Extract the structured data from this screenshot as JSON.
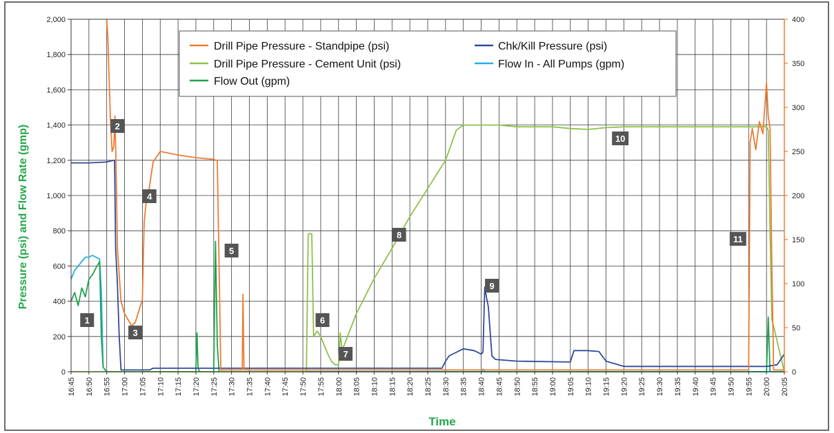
{
  "chart_data": {
    "type": "line",
    "xlabel": "Time",
    "ylabel": "Pressure (psi) and Flow Rate (gmp)",
    "ylim": [
      0,
      2000
    ],
    "y2lim": [
      0,
      400
    ],
    "y_ticks": [
      "0",
      "200",
      "400",
      "600",
      "800",
      "1,000",
      "1,200",
      "1,400",
      "1,600",
      "1,800",
      "2,000"
    ],
    "y2_ticks": [
      "0",
      "50",
      "100",
      "150",
      "200",
      "250",
      "300",
      "350",
      "400"
    ],
    "x_ticks": [
      "16:45",
      "16:50",
      "16:55",
      "17:00",
      "17:05",
      "17:10",
      "17:15",
      "17:20",
      "17:25",
      "17:30",
      "17:35",
      "17:40",
      "17:45",
      "17:50",
      "17:55",
      "18:00",
      "18:05",
      "18:10",
      "18:15",
      "18:20",
      "18:25",
      "18:30",
      "18:35",
      "18:40",
      "18:45",
      "18:50",
      "18:55",
      "19:00",
      "19:05",
      "19:10",
      "19:15",
      "19:20",
      "19:25",
      "19:30",
      "19:35",
      "19:40",
      "19:45",
      "19:50",
      "19:55",
      "20:00",
      "20:05"
    ],
    "grid": true,
    "legend_position": "top-center",
    "series": [
      {
        "name": "Drill Pipe Pressure - Standpipe (psi)",
        "color": "#ee7b30",
        "x": [
          "16:55",
          "16:55.3",
          "16:56",
          "16:56.5",
          "16:57",
          "16:57.3",
          "16:57.6",
          "16:58",
          "16:59",
          "17:00",
          "17:02",
          "17:03",
          "17:05",
          "17:05.5",
          "17:06",
          "17:07",
          "17:08",
          "17:10",
          "17:15",
          "17:20",
          "17:25",
          "17:25.5",
          "17:26",
          "17:26.5",
          "17:27",
          "17:30",
          "17:33",
          "17:33.2",
          "17:33.5",
          "17:34",
          "17:40",
          "19:50",
          "19:55",
          "19:55.4",
          "19:56",
          "19:57",
          "19:58",
          "19:59",
          "19:59.5",
          "20:00",
          "20:00.5",
          "20:01",
          "20:01.5",
          "20:02",
          "20:03",
          "20:05"
        ],
        "y": [
          2000,
          1900,
          1450,
          1250,
          1280,
          1450,
          1200,
          700,
          400,
          330,
          260,
          280,
          410,
          850,
          950,
          1050,
          1190,
          1250,
          1230,
          1215,
          1205,
          1200,
          1200,
          600,
          10,
          10,
          10,
          440,
          10,
          10,
          10,
          10,
          10,
          1300,
          1380,
          1260,
          1420,
          1350,
          1500,
          1640,
          1450,
          1380,
          600,
          10,
          10,
          10
        ]
      },
      {
        "name": "Chk/Kill Pressure (psi)",
        "color": "#2e4a9a",
        "x": [
          "16:45",
          "16:50",
          "16:55",
          "16:57",
          "16:57.2",
          "16:57.5",
          "16:58",
          "16:58.5",
          "16:59",
          "17:00",
          "17:07",
          "17:08",
          "17:25",
          "17:30",
          "18:29",
          "18:30",
          "18:31",
          "18:35",
          "18:38",
          "18:39",
          "18:40",
          "18:40.5",
          "18:41",
          "18:41.5",
          "18:42",
          "18:43",
          "18:44",
          "18:50",
          "19:05",
          "19:06",
          "19:10",
          "19:13",
          "19:15",
          "19:20",
          "20:00",
          "20:03",
          "20:05"
        ],
        "y": [
          1185,
          1185,
          1190,
          1200,
          1200,
          700,
          500,
          200,
          10,
          10,
          10,
          20,
          20,
          20,
          20,
          60,
          90,
          130,
          120,
          110,
          100,
          110,
          480,
          420,
          370,
          90,
          70,
          60,
          55,
          120,
          120,
          115,
          60,
          30,
          30,
          40,
          100
        ]
      },
      {
        "name": "Drill Pipe Pressure - Cement Unit (psi)",
        "color": "#8dc14a",
        "x": [
          "16:45",
          "17:50",
          "17:51",
          "17:51.5",
          "17:52",
          "17:52.5",
          "17:53",
          "17:54",
          "17:55",
          "17:56",
          "17:57",
          "17:58",
          "17:59",
          "18:00",
          "18:00.5",
          "18:01",
          "18:05",
          "18:10",
          "18:15",
          "18:20",
          "18:25",
          "18:30",
          "18:33",
          "18:35",
          "18:45",
          "18:50",
          "18:55",
          "19:00",
          "19:05",
          "19:10",
          "19:15",
          "19:20",
          "19:25",
          "19:30",
          "19:35",
          "19:40",
          "19:45",
          "19:50",
          "19:55",
          "20:00",
          "20:00.5",
          "20:01",
          "20:01.5",
          "20:05"
        ],
        "y": [
          0,
          0,
          0,
          780,
          785,
          780,
          200,
          230,
          200,
          150,
          100,
          60,
          40,
          40,
          220,
          120,
          330,
          530,
          700,
          880,
          1040,
          1200,
          1370,
          1400,
          1400,
          1390,
          1390,
          1390,
          1380,
          1375,
          1385,
          1390,
          1390,
          1390,
          1390,
          1390,
          1390,
          1390,
          1390,
          1390,
          1370,
          800,
          300,
          0
        ]
      },
      {
        "name": "Flow In - All Pumps (gpm)",
        "color": "#22aee6",
        "x": [
          "16:45",
          "16:46",
          "16:47",
          "16:48",
          "16:49",
          "16:50",
          "16:51",
          "16:52",
          "16:53",
          "16:53.5",
          "16:54",
          "16:55",
          "17:00",
          "18:40",
          "18:40.5",
          "18:41",
          "19:55",
          "19:56",
          "20:00",
          "20:05"
        ],
        "y": [
          105,
          115,
          120,
          125,
          130,
          130,
          132,
          130,
          128,
          90,
          5,
          0,
          0,
          0,
          3,
          0,
          0,
          0,
          0,
          0
        ]
      },
      {
        "name": "Flow Out (gpm)",
        "color": "#1ea24d",
        "x": [
          "16:45",
          "16:46",
          "16:47",
          "16:48",
          "16:49",
          "16:50",
          "16:51",
          "16:52",
          "16:53",
          "16:53.5",
          "16:54",
          "16:55",
          "17:20",
          "17:20.3",
          "17:20.6",
          "17:21",
          "17:25",
          "17:25.5",
          "17:26",
          "17:26.5",
          "17:27",
          "20:00",
          "20:00.5",
          "20:01",
          "20:01.5",
          "20:05"
        ],
        "y": [
          80,
          90,
          75,
          95,
          85,
          105,
          110,
          118,
          125,
          40,
          5,
          0,
          0,
          44,
          5,
          0,
          0,
          148,
          30,
          0,
          0,
          0,
          62,
          0,
          0,
          0
        ]
      }
    ],
    "annotations": [
      "1",
      "2",
      "3",
      "4",
      "5",
      "6",
      "7",
      "8",
      "9",
      "10",
      "11"
    ]
  }
}
